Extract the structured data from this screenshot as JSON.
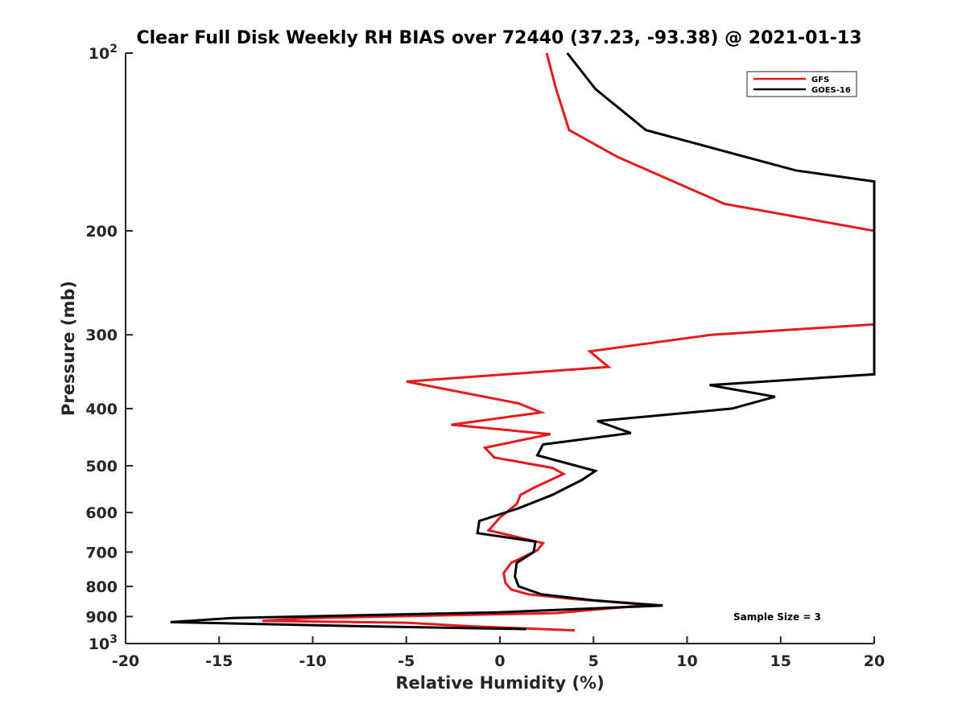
{
  "chart_data": {
    "type": "line",
    "title": "Clear Full Disk Weekly RH BIAS over 72440 (37.23, -93.38) @ 2021-01-13",
    "xlabel": "Relative Humidity (%)",
    "ylabel": "Pressure (mb)",
    "xlim": [
      -20,
      20
    ],
    "ylim": [
      100,
      1000
    ],
    "yscale": "log",
    "y_reversed": true,
    "grid": false,
    "legend_position": "top-right",
    "x_ticks": [
      "-20",
      "-15",
      "-10",
      "-5",
      "0",
      "5",
      "10",
      "15",
      "20"
    ],
    "y_ticks": [
      {
        "value": 100,
        "label": "10",
        "sup": "2"
      },
      {
        "value": 200,
        "label": "200"
      },
      {
        "value": 300,
        "label": "300"
      },
      {
        "value": 400,
        "label": "400"
      },
      {
        "value": 500,
        "label": "500"
      },
      {
        "value": 600,
        "label": "600"
      },
      {
        "value": 700,
        "label": "700"
      },
      {
        "value": 800,
        "label": "800"
      },
      {
        "value": 900,
        "label": "900"
      },
      {
        "value": 1000,
        "label": "10",
        "sup": "3"
      }
    ],
    "annotation": "Sample Size = 3",
    "series": [
      {
        "name": "GFS",
        "color": "#e41a1c",
        "points": [
          [
            2.5,
            100
          ],
          [
            3.0,
            115
          ],
          [
            3.7,
            135
          ],
          [
            6.3,
            150
          ],
          [
            12.0,
            180
          ],
          [
            20.0,
            200
          ],
          [
            20.0,
            288
          ],
          [
            11.3,
            300
          ],
          [
            4.8,
            320
          ],
          [
            5.8,
            340
          ],
          [
            -5.0,
            360
          ],
          [
            1.0,
            392
          ],
          [
            2.2,
            406
          ],
          [
            -2.6,
            426
          ],
          [
            2.7,
            442
          ],
          [
            -0.8,
            466
          ],
          [
            -0.3,
            484
          ],
          [
            2.8,
            504
          ],
          [
            3.4,
            516
          ],
          [
            1.8,
            545
          ],
          [
            1.1,
            560
          ],
          [
            0.9,
            580
          ],
          [
            0.0,
            612
          ],
          [
            -0.6,
            643
          ],
          [
            2.3,
            676
          ],
          [
            2.0,
            695
          ],
          [
            0.6,
            730
          ],
          [
            0.2,
            760
          ],
          [
            0.3,
            790
          ],
          [
            0.6,
            810
          ],
          [
            1.5,
            825
          ],
          [
            3.8,
            840
          ],
          [
            8.0,
            860
          ],
          [
            3.0,
            888
          ],
          [
            -10.0,
            905
          ],
          [
            -12.7,
            915
          ],
          [
            -5.0,
            922
          ],
          [
            -1.5,
            935
          ],
          [
            4.0,
            950
          ]
        ]
      },
      {
        "name": "GOES-16",
        "color": "#000000",
        "points": [
          [
            3.6,
            100
          ],
          [
            5.1,
            115
          ],
          [
            7.8,
            135
          ],
          [
            15.8,
            158
          ],
          [
            20.0,
            165
          ],
          [
            20.0,
            350
          ],
          [
            11.2,
            365
          ],
          [
            14.7,
            382
          ],
          [
            12.4,
            400
          ],
          [
            5.2,
            420
          ],
          [
            7.0,
            440
          ],
          [
            2.3,
            460
          ],
          [
            2.0,
            480
          ],
          [
            5.1,
            510
          ],
          [
            4.4,
            528
          ],
          [
            2.8,
            560
          ],
          [
            1.0,
            590
          ],
          [
            -1.1,
            620
          ],
          [
            -1.2,
            650
          ],
          [
            1.9,
            672
          ],
          [
            1.8,
            700
          ],
          [
            0.9,
            730
          ],
          [
            0.8,
            770
          ],
          [
            1.0,
            800
          ],
          [
            2.2,
            825
          ],
          [
            5.0,
            845
          ],
          [
            8.7,
            862
          ],
          [
            0.0,
            885
          ],
          [
            -14.3,
            905
          ],
          [
            -17.6,
            920
          ],
          [
            -7.0,
            935
          ],
          [
            1.4,
            945
          ]
        ]
      }
    ]
  }
}
